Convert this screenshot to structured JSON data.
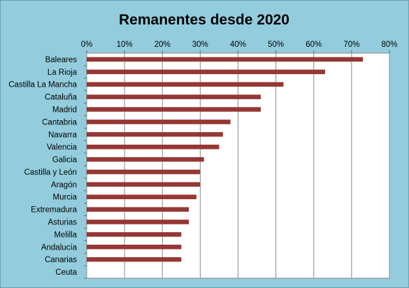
{
  "chart_data": {
    "type": "bar",
    "orientation": "horizontal",
    "title": "Remanentes desde 2020",
    "xlabel": "",
    "ylabel": "",
    "xlim": [
      0,
      0.8
    ],
    "x_tick_labels": [
      "0%",
      "10%",
      "20%",
      "30%",
      "40%",
      "50%",
      "60%",
      "70%",
      "80%"
    ],
    "categories": [
      "Baleares",
      "La Rioja",
      "Castilla La Mancha",
      "Cataluña",
      "Madrid",
      "Cantabria",
      "Navarra",
      "Valencia",
      "Galicia",
      "Castilla y León",
      "Aragón",
      "Murcia",
      "Extremadura",
      "Asturias",
      "Melilla",
      "Andalucía",
      "Canarias",
      "Ceuta"
    ],
    "values": [
      0.73,
      0.63,
      0.52,
      0.46,
      0.46,
      0.38,
      0.36,
      0.35,
      0.31,
      0.3,
      0.3,
      0.29,
      0.27,
      0.27,
      0.25,
      0.25,
      0.25,
      0.0
    ],
    "bar_color": "#953735",
    "grid": "vertical",
    "legend": "none",
    "x_axis_position": "top"
  }
}
